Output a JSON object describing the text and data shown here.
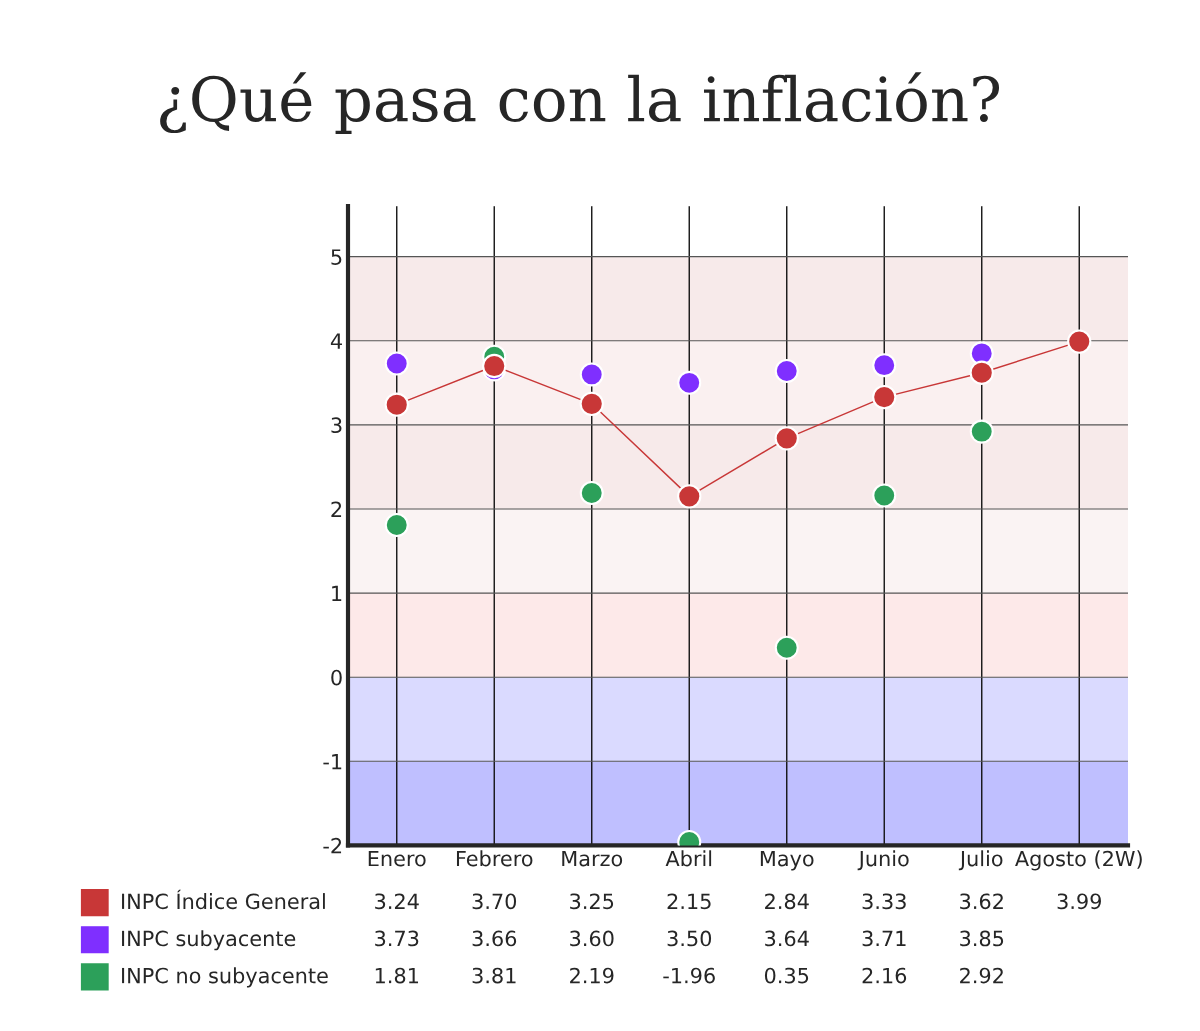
{
  "chart_data": {
    "type": "line",
    "title": "¿Qué pasa con la inflación?",
    "categories": [
      "Enero",
      "Febrero",
      "Marzo",
      "Abril",
      "Mayo",
      "Junio",
      "Julio",
      "Agosto (2W)"
    ],
    "series": [
      {
        "name": "INPC Índice General",
        "color": "#c83737",
        "values": [
          3.24,
          3.7,
          3.25,
          2.15,
          2.84,
          3.33,
          3.62,
          3.99
        ],
        "value_labels": [
          "3.24",
          "3.70",
          "3.25",
          "2.15",
          "2.84",
          "3.33",
          "3.62",
          "3.99"
        ]
      },
      {
        "name": "INPC subyacente",
        "color": "#7f2fff",
        "type": "scatter",
        "values": [
          3.73,
          3.66,
          3.6,
          3.5,
          3.64,
          3.71,
          3.85,
          null
        ],
        "value_labels": [
          "3.73",
          "3.66",
          "3.60",
          "3.50",
          "3.64",
          "3.71",
          "3.85",
          null
        ]
      },
      {
        "name": "INPC no subyacente",
        "color": "#2ca05a",
        "type": "scatter",
        "values": [
          1.81,
          3.81,
          2.19,
          -1.96,
          0.35,
          2.16,
          2.92,
          null
        ],
        "value_labels": [
          "1.81",
          "3.81",
          "2.19",
          "-1.96",
          "0.35",
          "2.16",
          "2.92",
          null
        ]
      }
    ],
    "ylim": [
      -2,
      5.6
    ],
    "yticks": [
      -2,
      -1,
      0,
      1,
      2,
      3,
      4,
      5
    ],
    "bands": [
      {
        "axis": "y",
        "from": -2,
        "to": -1,
        "color": "#bfbfff"
      },
      {
        "axis": "y",
        "from": -1,
        "to": 0,
        "color": "#dadaff"
      },
      {
        "axis": "y",
        "from": 0,
        "to": 1,
        "color": "#fde9e9"
      },
      {
        "axis": "y",
        "from": 1,
        "to": 2,
        "color": "#faf3f3"
      },
      {
        "axis": "y",
        "from": 2,
        "to": 3,
        "color": "#f7eaea"
      },
      {
        "axis": "y",
        "from": 3,
        "to": 4,
        "color": "#faf0f0"
      },
      {
        "axis": "y",
        "from": 4,
        "to": 5,
        "color": "#f7eaea"
      }
    ],
    "grid": true,
    "legend": "bottom",
    "marker": "circle",
    "line_style": "solid"
  }
}
